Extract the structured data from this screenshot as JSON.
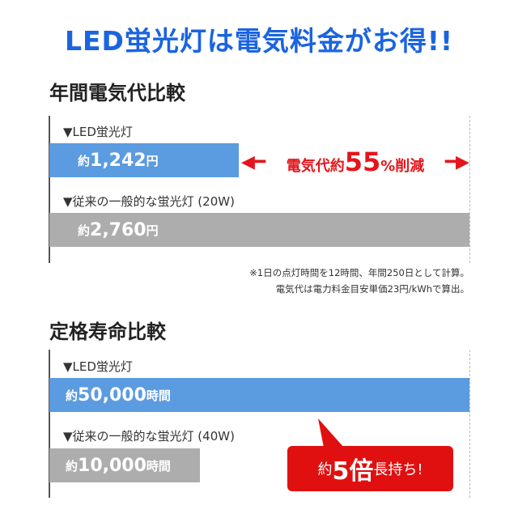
{
  "title": "LED蛍光灯は電気料金がお得!!",
  "colors": {
    "title": "#1a64e0",
    "led_bar": "#5b9be0",
    "conventional_bar": "#adadad",
    "accent": "#e5151b"
  },
  "chart_data": [
    {
      "type": "bar",
      "orientation": "horizontal",
      "title": "年間電気代比較",
      "categories": [
        "▼LED蛍光灯",
        "▼従来の一般的な蛍光灯 (20W)"
      ],
      "values": [
        1242,
        2760
      ],
      "value_labels": [
        {
          "prefix": "約",
          "number": "1,242",
          "unit": "円"
        },
        {
          "prefix": "約",
          "number": "2,760",
          "unit": "円"
        }
      ],
      "annotation": {
        "text_before": "電気代約",
        "highlight": "55",
        "percent": "%",
        "text_after": "削減"
      },
      "notes": [
        "※1日の点灯時間を12時間、年間250日として計算。",
        "電気代は電力料金目安単価23円/kWhで算出。"
      ]
    },
    {
      "type": "bar",
      "orientation": "horizontal",
      "title": "定格寿命比較",
      "categories": [
        "▼LED蛍光灯",
        "▼従来の一般的な蛍光灯 (40W)"
      ],
      "values": [
        50000,
        10000
      ],
      "value_labels": [
        {
          "prefix": "約",
          "number": "50,000",
          "unit": "時間"
        },
        {
          "prefix": "約",
          "number": "10,000",
          "unit": "時間"
        }
      ],
      "annotation": {
        "prefix": "約",
        "highlight": "5倍",
        "suffix": "長持ち!"
      }
    }
  ]
}
